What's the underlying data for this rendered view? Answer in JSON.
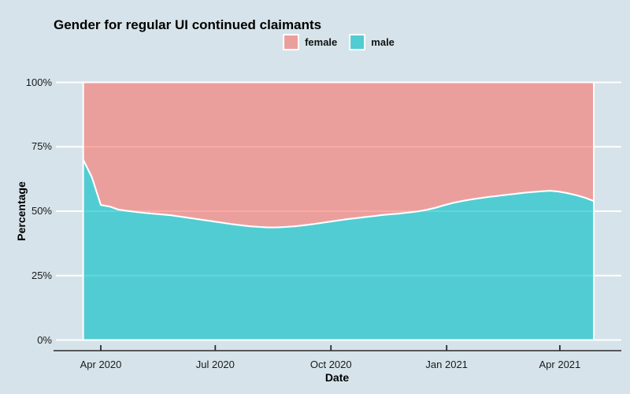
{
  "chart": {
    "title": "Gender for regular UI continued claimants",
    "legend": {
      "position": "top",
      "items": [
        {
          "label": "female",
          "swatch_color": "#eb9f9c"
        },
        {
          "label": "male",
          "swatch_color": "#51ccd2"
        }
      ]
    },
    "x_axis": {
      "title": "Date",
      "tick_labels": [
        "Apr 2020",
        "Jul 2020",
        "Oct 2020",
        "Jan 2021",
        "Apr 2021"
      ],
      "tick_dates": [
        "2020-04-01",
        "2020-07-01",
        "2020-10-01",
        "2021-01-01",
        "2021-04-01"
      ]
    },
    "y_axis": {
      "title": "Percentage",
      "tick_labels": [
        "0%",
        "25%",
        "50%",
        "75%",
        "100%"
      ],
      "tick_values": [
        0,
        25,
        50,
        75,
        100
      ]
    }
  },
  "colors": {
    "background": "#d6e3ea",
    "gridline": "#ffffff",
    "axis_line": "#2b2b2b",
    "tick_mark": "#2b2b2b",
    "text": "#000000",
    "female_area": "#F8766D",
    "male_area": "#00BFC4",
    "area_opacity": 0.62,
    "area_outline": "#ffffff",
    "female_rendered": "#eb9f9c",
    "male_rendered": "#51ccd2"
  },
  "chart_data": {
    "type": "area",
    "stacked": true,
    "normalized_to_100": true,
    "title": "Gender for regular UI continued claimants",
    "xlabel": "Date",
    "ylabel": "Percentage",
    "ylim": [
      0,
      100
    ],
    "grid": "horizontal major gridlines, white",
    "legend_position": "top-center",
    "x": [
      "2020-03-18",
      "2020-03-25",
      "2020-04-01",
      "2020-04-08",
      "2020-04-15",
      "2020-04-22",
      "2020-04-29",
      "2020-05-06",
      "2020-05-13",
      "2020-05-20",
      "2020-05-27",
      "2020-06-03",
      "2020-06-10",
      "2020-06-17",
      "2020-06-24",
      "2020-07-01",
      "2020-07-08",
      "2020-07-15",
      "2020-07-22",
      "2020-07-29",
      "2020-08-05",
      "2020-08-12",
      "2020-08-19",
      "2020-08-26",
      "2020-09-02",
      "2020-09-09",
      "2020-09-16",
      "2020-09-23",
      "2020-09-30",
      "2020-10-07",
      "2020-10-14",
      "2020-10-21",
      "2020-10-28",
      "2020-11-04",
      "2020-11-11",
      "2020-11-18",
      "2020-11-25",
      "2020-12-02",
      "2020-12-09",
      "2020-12-16",
      "2020-12-23",
      "2020-12-30",
      "2021-01-06",
      "2021-01-13",
      "2021-01-20",
      "2021-01-27",
      "2021-02-03",
      "2021-02-10",
      "2021-02-17",
      "2021-02-24",
      "2021-03-03",
      "2021-03-10",
      "2021-03-17",
      "2021-03-24",
      "2021-03-31",
      "2021-04-07",
      "2021-04-14",
      "2021-04-21",
      "2021-04-28"
    ],
    "series": [
      {
        "name": "male",
        "values": [
          70.0,
          63.0,
          52.4,
          51.8,
          50.6,
          50.1,
          49.7,
          49.3,
          49.0,
          48.7,
          48.4,
          47.9,
          47.4,
          46.9,
          46.4,
          45.9,
          45.4,
          44.9,
          44.5,
          44.1,
          43.9,
          43.7,
          43.7,
          43.9,
          44.1,
          44.5,
          44.9,
          45.4,
          45.9,
          46.4,
          46.9,
          47.3,
          47.7,
          48.1,
          48.5,
          48.8,
          49.1,
          49.5,
          49.9,
          50.5,
          51.3,
          52.3,
          53.2,
          53.9,
          54.5,
          55.0,
          55.5,
          55.9,
          56.3,
          56.7,
          57.1,
          57.4,
          57.7,
          57.9,
          57.6,
          57.0,
          56.2,
          55.2,
          53.9
        ]
      },
      {
        "name": "female",
        "values": [
          30.0,
          37.0,
          47.6,
          48.2,
          49.4,
          49.9,
          50.3,
          50.7,
          51.0,
          51.3,
          51.6,
          52.1,
          52.6,
          53.1,
          53.6,
          54.1,
          54.6,
          55.1,
          55.5,
          55.9,
          56.1,
          56.3,
          56.3,
          56.1,
          55.9,
          55.5,
          55.1,
          54.6,
          54.1,
          53.6,
          53.1,
          52.7,
          52.3,
          51.9,
          51.5,
          51.2,
          50.9,
          50.5,
          50.1,
          49.5,
          48.7,
          47.7,
          46.8,
          46.1,
          45.5,
          45.0,
          44.5,
          44.1,
          43.7,
          43.3,
          42.9,
          42.6,
          42.3,
          42.1,
          42.4,
          43.0,
          43.8,
          44.8,
          46.1
        ]
      }
    ]
  }
}
